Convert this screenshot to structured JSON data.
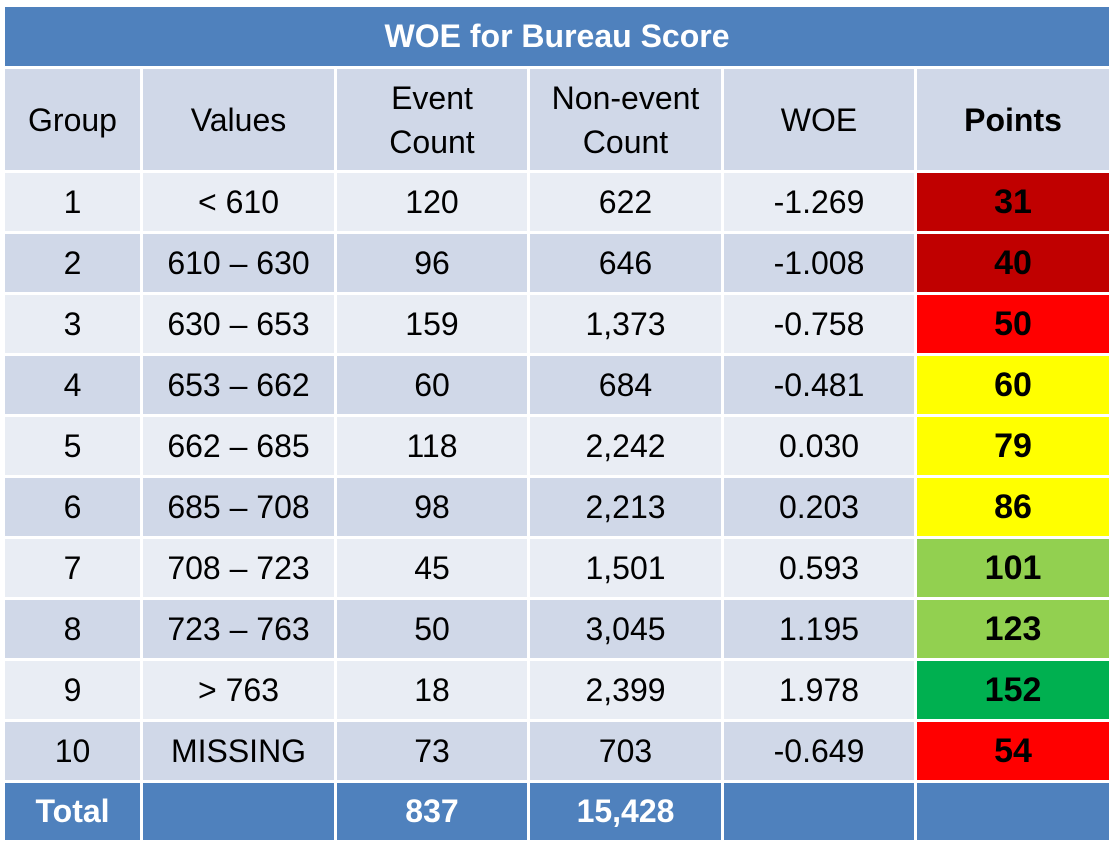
{
  "title": "WOE for Bureau Score",
  "headers": {
    "group": "Group",
    "values": "Values",
    "event_count_l1": "Event",
    "event_count_l2": "Count",
    "nonevent_count_l1": "Non-event",
    "nonevent_count_l2": "Count",
    "woe": "WOE",
    "points": "Points"
  },
  "colors": {
    "header_blue": "#4f81bd",
    "row_light": "#e9edf4",
    "row_dark": "#d0d8e8",
    "dark_red": "#c00000",
    "red": "#ff0000",
    "yellow": "#ffff00",
    "light_green": "#92d050",
    "green": "#00b050"
  },
  "rows": [
    {
      "group": "1",
      "values": "< 610",
      "event_count": "120",
      "nonevent_count": "622",
      "woe": "-1.269",
      "points": "31",
      "points_color": "#c00000"
    },
    {
      "group": "2",
      "values": "610 – 630",
      "event_count": "96",
      "nonevent_count": "646",
      "woe": "-1.008",
      "points": "40",
      "points_color": "#c00000"
    },
    {
      "group": "3",
      "values": "630 – 653",
      "event_count": "159",
      "nonevent_count": "1,373",
      "woe": "-0.758",
      "points": "50",
      "points_color": "#ff0000"
    },
    {
      "group": "4",
      "values": "653 – 662",
      "event_count": "60",
      "nonevent_count": "684",
      "woe": "-0.481",
      "points": "60",
      "points_color": "#ffff00"
    },
    {
      "group": "5",
      "values": "662 – 685",
      "event_count": "118",
      "nonevent_count": "2,242",
      "woe": "0.030",
      "points": "79",
      "points_color": "#ffff00"
    },
    {
      "group": "6",
      "values": "685 – 708",
      "event_count": "98",
      "nonevent_count": "2,213",
      "woe": "0.203",
      "points": "86",
      "points_color": "#ffff00"
    },
    {
      "group": "7",
      "values": "708 – 723",
      "event_count": "45",
      "nonevent_count": "1,501",
      "woe": "0.593",
      "points": "101",
      "points_color": "#92d050"
    },
    {
      "group": "8",
      "values": "723 – 763",
      "event_count": "50",
      "nonevent_count": "3,045",
      "woe": "1.195",
      "points": "123",
      "points_color": "#92d050"
    },
    {
      "group": "9",
      "values": "> 763",
      "event_count": "18",
      "nonevent_count": "2,399",
      "woe": "1.978",
      "points": "152",
      "points_color": "#00b050"
    },
    {
      "group": "10",
      "values": "MISSING",
      "event_count": "73",
      "nonevent_count": "703",
      "woe": "-0.649",
      "points": "54",
      "points_color": "#ff0000"
    }
  ],
  "total": {
    "label": "Total",
    "event_count": "837",
    "nonevent_count": "15,428"
  }
}
